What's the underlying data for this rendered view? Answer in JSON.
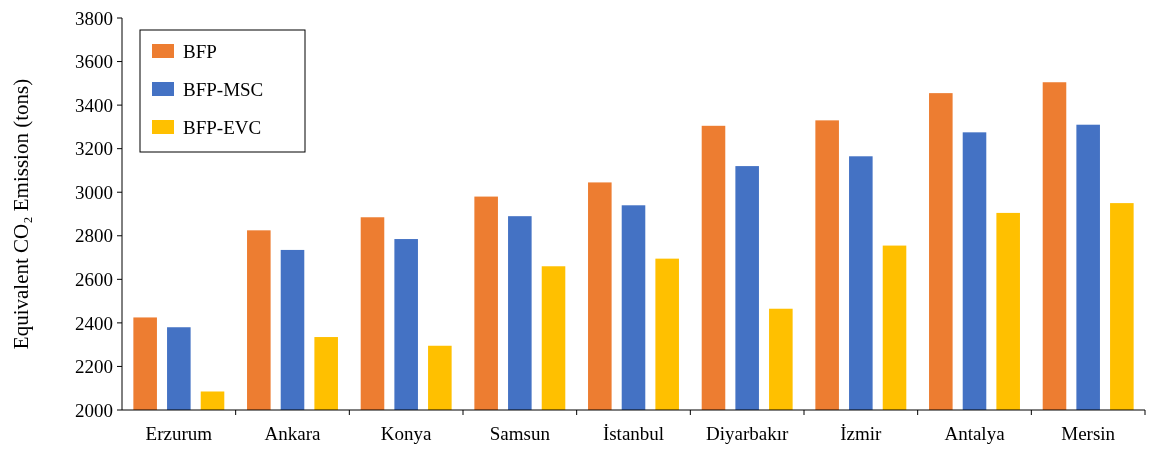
{
  "chart_data": {
    "type": "bar",
    "ylabel": "Equivalent CO₂ Emission (tons)",
    "categories": [
      "Erzurum",
      "Ankara",
      "Konya",
      "Samsun",
      "İstanbul",
      "Diyarbakır",
      "İzmir",
      "Antalya",
      "Mersin"
    ],
    "series": [
      {
        "name": "BFP",
        "color": "#ed7d31",
        "values": [
          2425,
          2825,
          2885,
          2980,
          3045,
          3305,
          3330,
          3455,
          3505
        ]
      },
      {
        "name": "BFP-MSC",
        "color": "#4472c4",
        "values": [
          2380,
          2735,
          2785,
          2890,
          2940,
          3120,
          3165,
          3275,
          3310
        ]
      },
      {
        "name": "BFP-EVC",
        "color": "#ffc000",
        "values": [
          2085,
          2335,
          2295,
          2660,
          2695,
          2465,
          2755,
          2905,
          2950
        ]
      }
    ],
    "ylim": [
      2000,
      3800
    ],
    "yticks": [
      2000,
      2200,
      2400,
      2600,
      2800,
      3000,
      3200,
      3400,
      3600,
      3800
    ],
    "grid": false,
    "legend": "top left"
  }
}
